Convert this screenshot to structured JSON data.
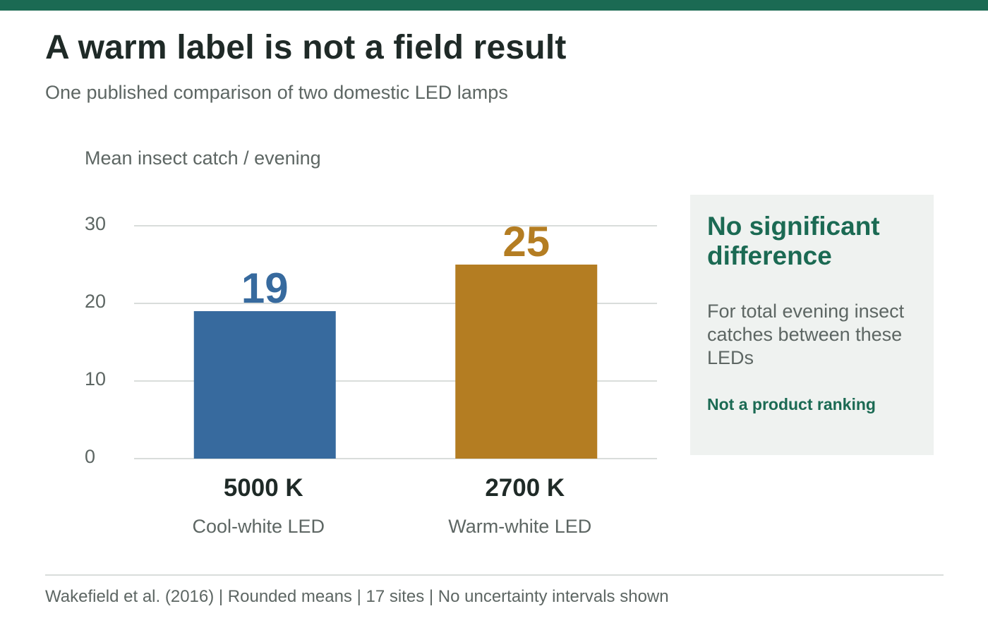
{
  "header": {
    "title": "A warm label is not a field result",
    "subtitle": "One published comparison of two domestic LED lamps"
  },
  "chart_data": {
    "type": "bar",
    "ylabel": "Mean insect catch / evening",
    "ylim": [
      0,
      30
    ],
    "yticks": [
      0,
      10,
      20,
      30
    ],
    "grid": true,
    "categories": [
      "5000 K",
      "2700 K"
    ],
    "category_sublabels": [
      "Cool-white LED",
      "Warm-white LED"
    ],
    "values": [
      19,
      25
    ],
    "data_labels": [
      "19",
      "25"
    ],
    "colors": [
      "#376a9e",
      "#b47d22"
    ]
  },
  "note": {
    "heading": "No significant difference",
    "body": "For total evening insect catches between these LEDs",
    "emphasis": "Not a product ranking"
  },
  "footer": {
    "source": "Wakefield et al. (2016) | Rounded means | 17 sites | No uncertainty intervals shown"
  },
  "colors": {
    "accent": "#1b6a53",
    "cool_bar": "#376a9e",
    "warm_bar": "#b47d22"
  }
}
